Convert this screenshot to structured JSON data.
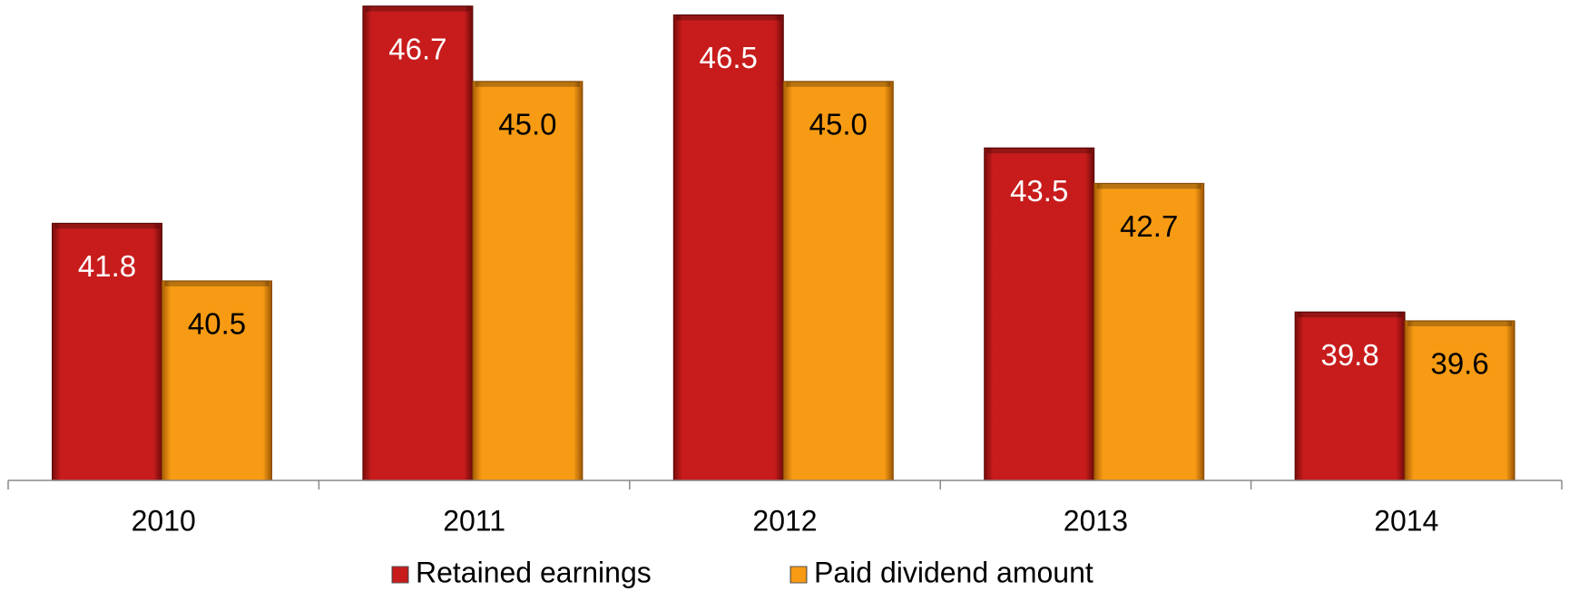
{
  "chart_data": {
    "type": "bar",
    "categories": [
      "2010",
      "2011",
      "2012",
      "2013",
      "2014"
    ],
    "series": [
      {
        "name": "Retained earnings",
        "color": "#c81c1c",
        "values": [
          41.8,
          46.7,
          46.5,
          43.5,
          39.8
        ],
        "value_labels": [
          "41.8",
          "46.7",
          "46.5",
          "43.5",
          "39.8"
        ],
        "label_color": "#ffffff"
      },
      {
        "name": "Paid dividend amount",
        "color": "#f79b14",
        "values": [
          40.5,
          45,
          45,
          42.7,
          39.6
        ],
        "value_labels": [
          "40.5",
          "45.0",
          "45.0",
          "42.7",
          "39.6"
        ],
        "label_color": "#000000"
      }
    ],
    "ylim": [
      36,
      47
    ],
    "legend": "bottom"
  }
}
